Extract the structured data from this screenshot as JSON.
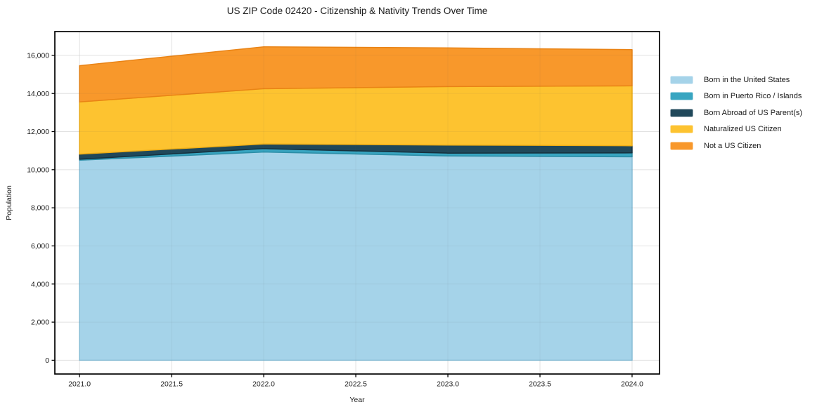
{
  "chart_data": {
    "type": "area",
    "stacked": true,
    "title": "US ZIP Code 02420 - Citizenship & Nativity Trends Over Time",
    "xlabel": "Year",
    "ylabel": "Population",
    "x": [
      2021,
      2022,
      2023,
      2024
    ],
    "series": [
      {
        "name": "Born in the United States",
        "color": "#a5d3e9",
        "edge": "#8ac2dc",
        "values": [
          10500,
          10930,
          10720,
          10680
        ]
      },
      {
        "name": "Born in Puerto Rico / Islands",
        "color": "#38a5c1",
        "edge": "#2b8da6",
        "values": [
          50,
          175,
          150,
          205
        ]
      },
      {
        "name": "Born Abroad of US Parent(s)",
        "color": "#20485a",
        "edge": "#15303d",
        "values": [
          270,
          245,
          425,
          370
        ]
      },
      {
        "name": "Naturalized US Citizen",
        "color": "#fdc330",
        "edge": "#efae15",
        "values": [
          2740,
          2900,
          3065,
          3145
        ]
      },
      {
        "name": "Not a US Citizen",
        "color": "#f8982b",
        "edge": "#e98315",
        "values": [
          1900,
          2200,
          2030,
          1900
        ]
      }
    ],
    "totals": [
      15460,
      16450,
      16390,
      16300
    ],
    "xlim": [
      2020.866,
      2024.149
    ],
    "ylim": [
      -722,
      17248
    ],
    "x_ticks": {
      "values": [
        2021.0,
        2021.5,
        2022.0,
        2022.5,
        2023.0,
        2023.5,
        2024.0
      ],
      "labels": [
        "2021.0",
        "2021.5",
        "2022.0",
        "2022.5",
        "2023.0",
        "2023.5",
        "2024.0"
      ]
    },
    "y_ticks": {
      "values": [
        0,
        2000,
        4000,
        6000,
        8000,
        10000,
        12000,
        14000,
        16000
      ],
      "labels": [
        "0",
        "2,000",
        "4,000",
        "6,000",
        "8,000",
        "10,000",
        "12,000",
        "14,000",
        "16,000"
      ]
    },
    "grid": true,
    "legend_position": "right-of-plot",
    "colors": {
      "background": "#ffffff",
      "grid": "#ececec",
      "spine": "#000000",
      "text": "#1a1a1a"
    }
  }
}
